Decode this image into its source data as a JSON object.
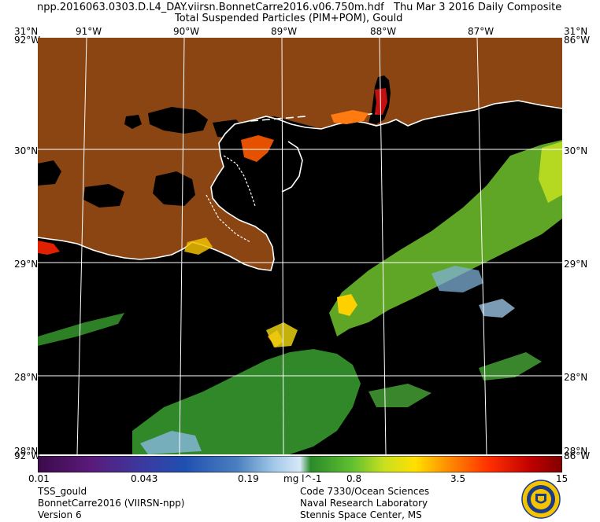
{
  "header": {
    "filename": "npp.2016063.0303.D.L4_DAY.viirsn.BonnetCarre2016.v06.750m.hdf",
    "date": "Thu Mar  3 2016 Daily Composite",
    "product": "Total Suspended Particles (PIM+POM), Gould"
  },
  "map": {
    "land_color": "#8b4513",
    "water_color": "#000000",
    "coast_color": "#ffffff",
    "grid_color": "#ffffff",
    "lon_labels": [
      "91°W",
      "90°W",
      "89°W",
      "88°W",
      "87°W"
    ],
    "lat_labels_left": [
      "30°N",
      "29°N",
      "28°N"
    ],
    "lat_labels_right": [
      "30°N",
      "29°N",
      "28°N"
    ],
    "corner_top_left": "31°N",
    "corner_top_left_lon": "92°W",
    "corner_top_right": "31°N",
    "corner_top_right_lon": "86°W",
    "corner_bottom_left": "28°N",
    "corner_bottom_left_lon": "92°W",
    "corner_bottom_right": "28°N",
    "corner_bottom_right_lon": "86°W"
  },
  "colorbar": {
    "units": "mg l^-1",
    "tick_labels": [
      "0.01",
      "0.043",
      "0.19",
      "0.8",
      "3.5",
      "15"
    ],
    "colors": [
      "#3b0a4a",
      "#5a1a7a",
      "#3a3aa0",
      "#2050b0",
      "#4a80c0",
      "#a0c8e8",
      "#d8e8f8",
      "#2a8a2a",
      "#60c030",
      "#c8e020",
      "#ffe000",
      "#ff9000",
      "#ff3000",
      "#c00000",
      "#800000"
    ]
  },
  "footer": {
    "product_name": "TSS_gould",
    "region": "BonnetCarre2016 (VIIRSN-npp)",
    "version": "Version 6",
    "org_line1": "Code 7330/Ocean Sciences",
    "org_line2": "Naval Research Laboratory",
    "org_line3": "Stennis Space Center, MS"
  }
}
